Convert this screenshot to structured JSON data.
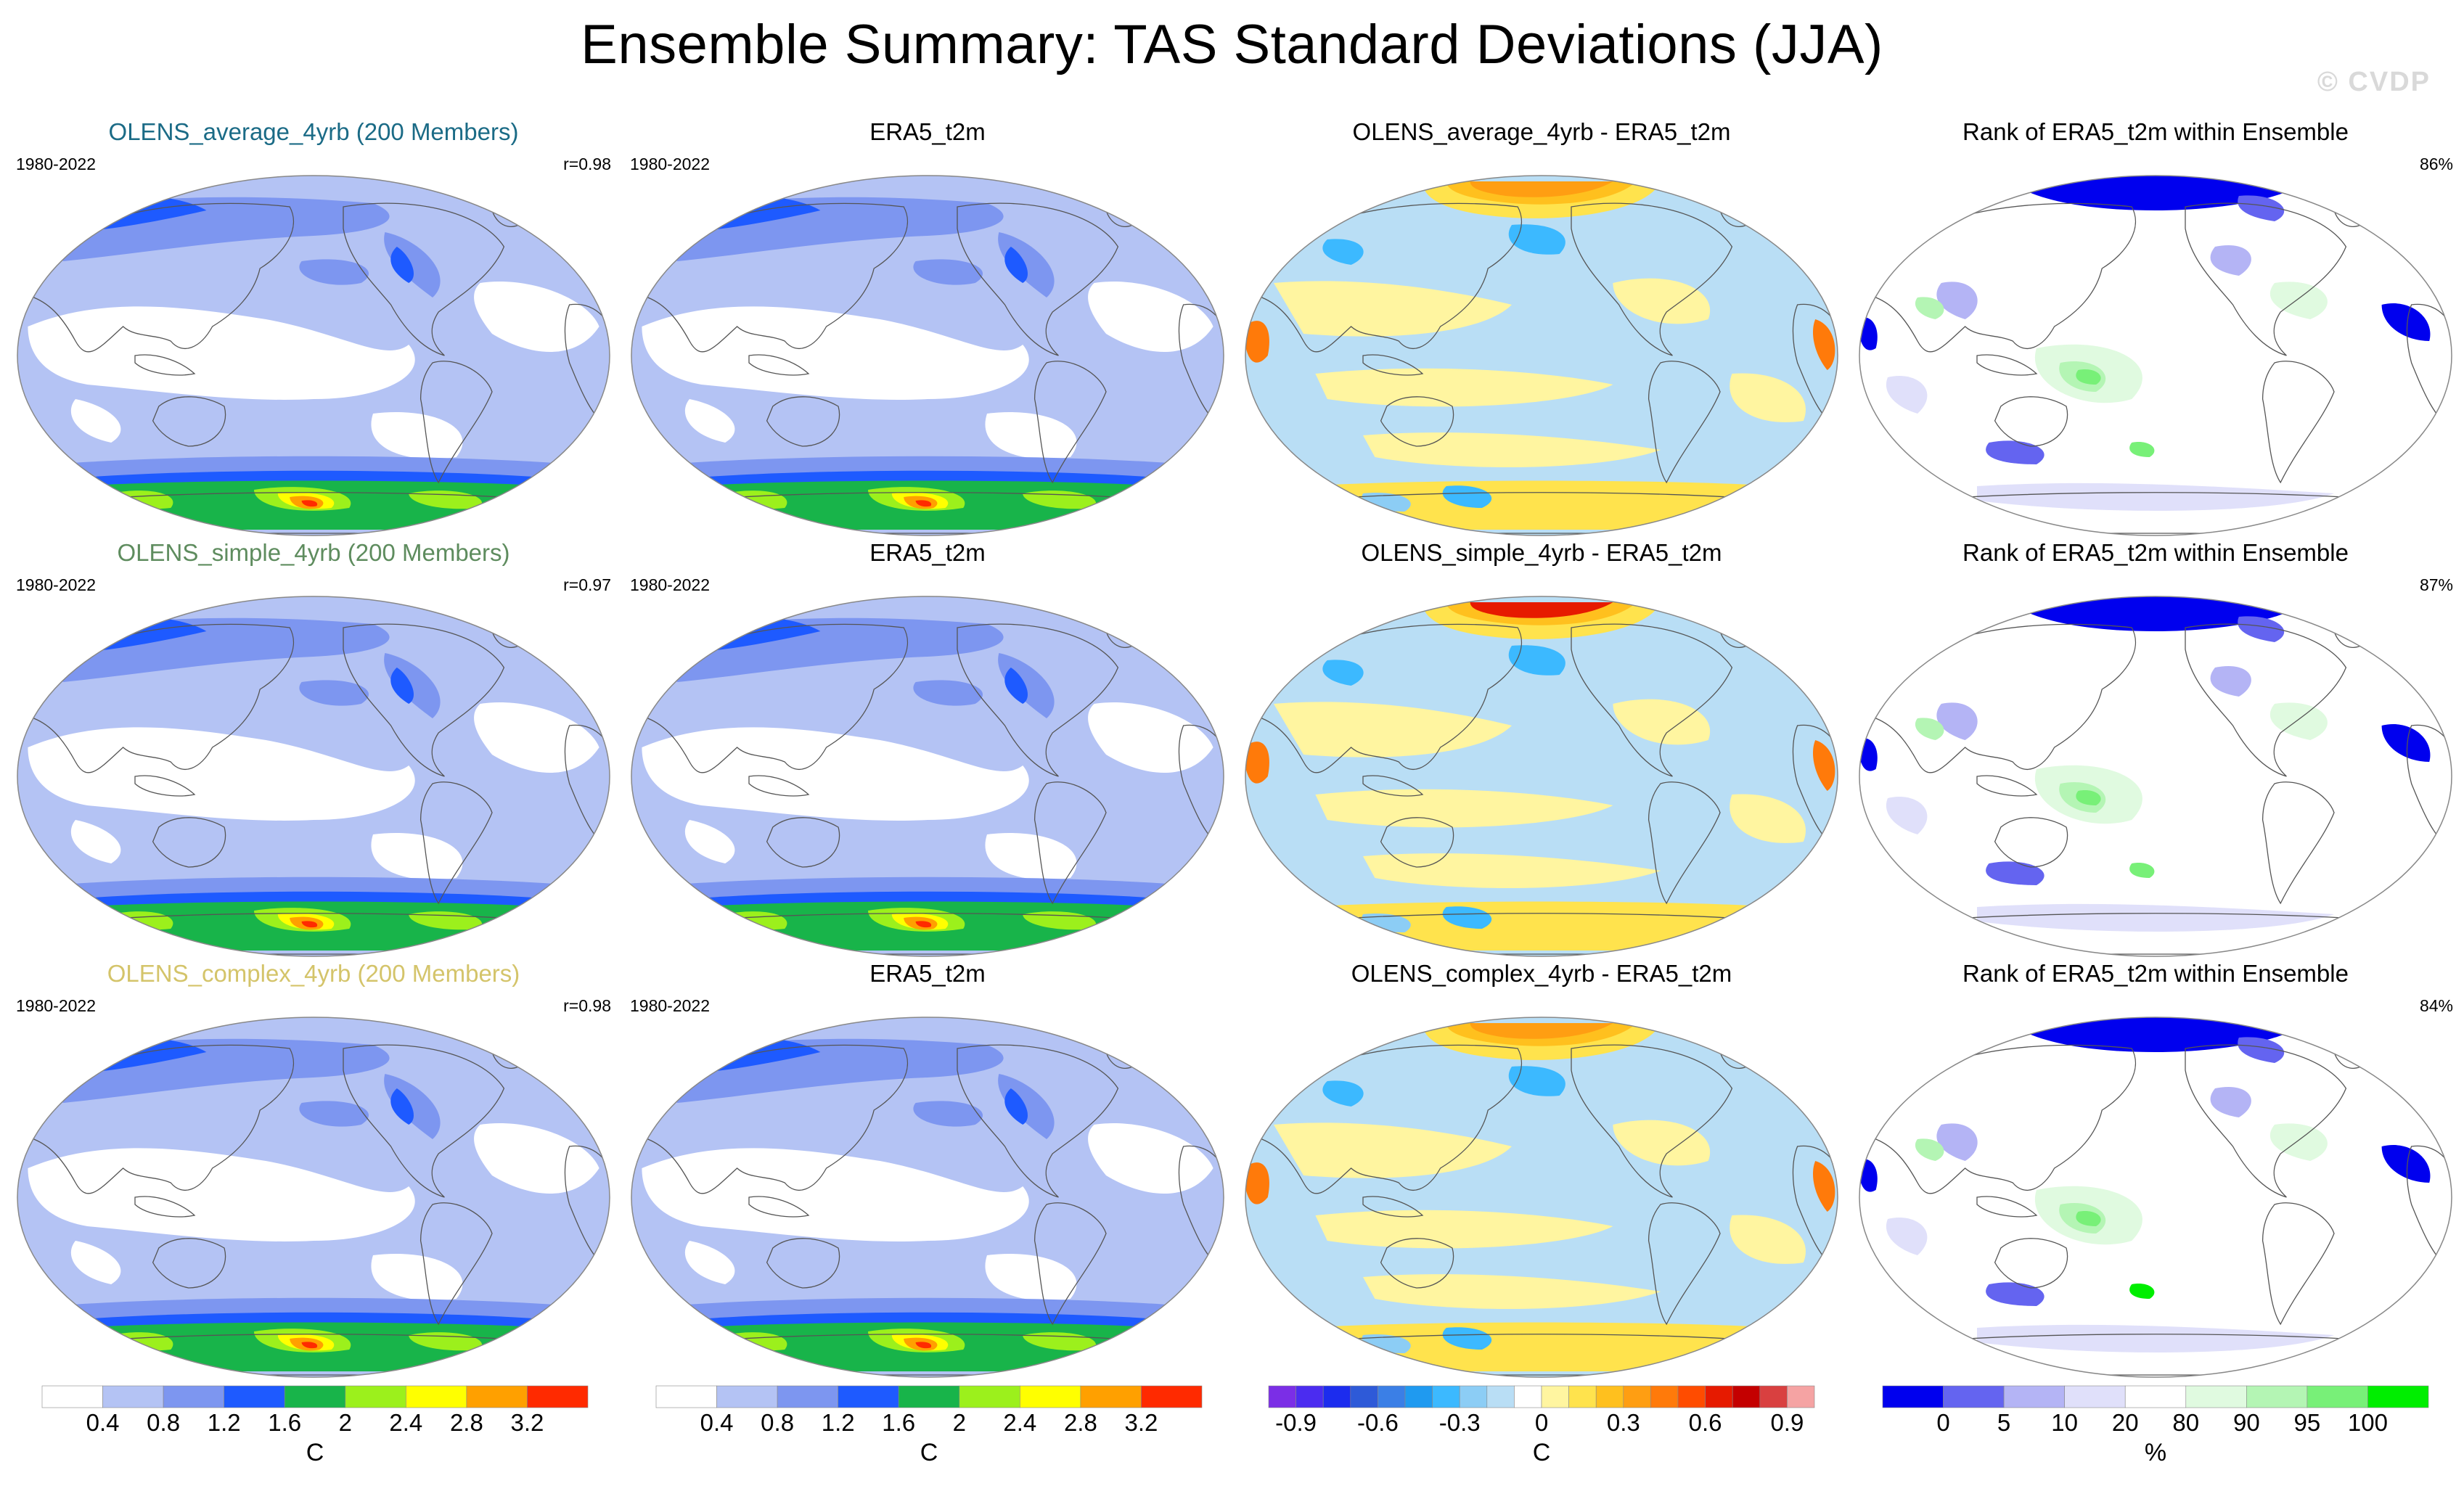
{
  "title": "Ensemble Summary: TAS Standard Deviations (JJA)",
  "watermark": "© CVDP",
  "colors": {
    "coastline": "#555555",
    "frame": "#888888",
    "model_title_colors": [
      "#1b6b86",
      "#5e8c5e",
      "#d4c46a"
    ]
  },
  "rows": [
    {
      "model_title": "OLENS_average_4yrb (200 Members)",
      "period": "1980-2022",
      "correlation": "r=0.98",
      "obs_title": "ERA5_t2m",
      "obs_period": "1980-2022",
      "diff_title": "OLENS_average_4yrb - ERA5_t2m",
      "rank_title": "Rank of ERA5_t2m within Ensemble",
      "rank_pct": "86%"
    },
    {
      "model_title": "OLENS_simple_4yrb (200 Members)",
      "period": "1980-2022",
      "correlation": "r=0.97",
      "obs_title": "ERA5_t2m",
      "obs_period": "1980-2022",
      "diff_title": "OLENS_simple_4yrb - ERA5_t2m",
      "rank_title": "Rank of ERA5_t2m within Ensemble",
      "rank_pct": "87%"
    },
    {
      "model_title": "OLENS_complex_4yrb (200 Members)",
      "period": "1980-2022",
      "correlation": "r=0.98",
      "obs_title": "ERA5_t2m",
      "obs_period": "1980-2022",
      "diff_title": "OLENS_complex_4yrb - ERA5_t2m",
      "rank_title": "Rank of ERA5_t2m within Ensemble",
      "rank_pct": "84%"
    }
  ],
  "legends": {
    "stddev": {
      "unit": "C",
      "colors": [
        "#ffffff",
        "#b4c3f4",
        "#7d96f0",
        "#1e5aff",
        "#18b44a",
        "#9cf01c",
        "#ffff00",
        "#ffa000",
        "#ff2a00"
      ],
      "labels": [
        "0.4",
        "0.8",
        "1.2",
        "1.6",
        "2",
        "2.4",
        "2.8",
        "3.2"
      ]
    },
    "diff": {
      "unit": "C",
      "colors": [
        "#7b2ee6",
        "#4b2cf0",
        "#1c2cee",
        "#2e5ad8",
        "#3b7fe6",
        "#1f9af0",
        "#3cb9ff",
        "#8ccdf5",
        "#b9def5",
        "#ffffff",
        "#fff5a0",
        "#ffe34d",
        "#ffc01e",
        "#ff9e12",
        "#ff7a0a",
        "#ff4c00",
        "#e61a00",
        "#c40000",
        "#d94040",
        "#f5a3a3"
      ],
      "labels": [
        "-0.9",
        "-0.6",
        "-0.3",
        "0",
        "0.3",
        "0.6",
        "0.9"
      ]
    },
    "rank": {
      "unit": "%",
      "colors": [
        "#0000ee",
        "#6464f0",
        "#b4b4f5",
        "#e0e0fa",
        "#ffffff",
        "#e0fae0",
        "#b4f5b4",
        "#78f078",
        "#00ee00"
      ],
      "labels": [
        "0",
        "5",
        "10",
        "20",
        "80",
        "90",
        "95",
        "100"
      ]
    }
  }
}
